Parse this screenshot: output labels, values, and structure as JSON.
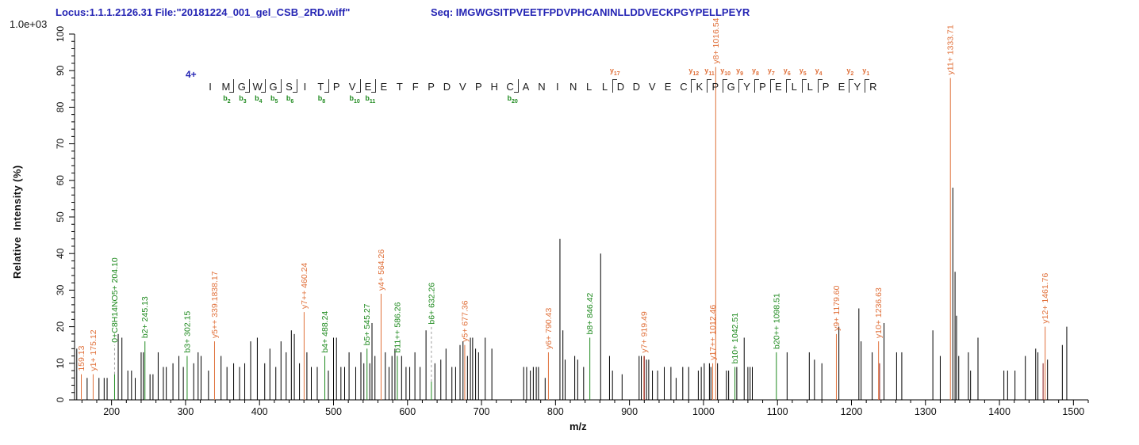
{
  "header": {
    "locus_file": "Locus:1.1.1.2126.31 File:\"20181224_001_gel_CSB_2RD.wiff\"",
    "seq_line": "Seq: IMGWGSITPVEETFPDVPHCANINLLDDVECKPGYPELLPEYR"
  },
  "peptide_annotation": {
    "charge_label": "4+",
    "residues": "IMGWGSITPVEETFPDVPHCANINLLDDVECKPGYPELLPEYR",
    "b_cuts": [
      2,
      3,
      4,
      5,
      6,
      8,
      10,
      11,
      20
    ],
    "y_cuts": [
      17,
      12,
      11,
      10,
      9,
      8,
      7,
      6,
      5,
      4,
      2,
      1
    ]
  },
  "colors": {
    "y_ion": "#e0703a",
    "b_ion": "#1f8a1f",
    "peak": "#000000",
    "dark_red": "#8b1a1a",
    "dash_line": "#9e9e9e",
    "header_blue": "#2525b4",
    "axis": "#000000"
  },
  "chart_data": {
    "type": "bar",
    "subtype": "ms2-fragmentation-spectrum",
    "title": "",
    "xlabel": "m/z",
    "ylabel": "Relative  Intensity (%)",
    "y_scale_label": "1.0e+03",
    "xlim": [
      150,
      1520
    ],
    "ylim": [
      0,
      100
    ],
    "x_ticks": [
      200,
      300,
      400,
      500,
      600,
      700,
      800,
      900,
      1000,
      1100,
      1200,
      1300,
      1400,
      1500
    ],
    "y_ticks": [
      0,
      10,
      20,
      30,
      40,
      50,
      60,
      70,
      80,
      90,
      100
    ],
    "x_minor_step": 20,
    "y_minor_step": 2,
    "grid": false,
    "legend": "none",
    "peaks_format": "[mz, rel_intensity_pct, type(k=black,y=y-ion,b=b-ion,r=dark-red), label, dash_to_pct]",
    "peaks": [
      [
        153,
        14,
        "k",
        "",
        0
      ],
      [
        159.13,
        7,
        "y",
        "159.13",
        0
      ],
      [
        167,
        6,
        "k",
        "",
        0
      ],
      [
        175.12,
        7,
        "y",
        "y1+ 175.12",
        0
      ],
      [
        183,
        6,
        "k",
        "",
        0
      ],
      [
        190,
        6,
        "k",
        "",
        0
      ],
      [
        194,
        6,
        "k",
        "",
        0
      ],
      [
        204.1,
        7,
        "b",
        "0+C8H14NO5+ 204.10",
        15
      ],
      [
        209,
        18,
        "k",
        "",
        0
      ],
      [
        214,
        17,
        "k",
        "",
        0
      ],
      [
        222,
        8,
        "k",
        "",
        0
      ],
      [
        227,
        8,
        "k",
        "",
        0
      ],
      [
        232,
        6,
        "k",
        "",
        0
      ],
      [
        240,
        13,
        "k",
        "",
        0
      ],
      [
        243,
        13,
        "k",
        "",
        0
      ],
      [
        245.13,
        16,
        "b",
        "b2+ 245.13",
        0
      ],
      [
        252,
        7,
        "k",
        "",
        0
      ],
      [
        256,
        7,
        "k",
        "",
        0
      ],
      [
        263,
        13,
        "k",
        "",
        0
      ],
      [
        270,
        9,
        "k",
        "",
        0
      ],
      [
        274,
        9,
        "k",
        "",
        0
      ],
      [
        283,
        10,
        "k",
        "",
        0
      ],
      [
        291,
        12,
        "k",
        "",
        0
      ],
      [
        297,
        9,
        "k",
        "",
        0
      ],
      [
        302.15,
        12,
        "b",
        "b3+ 302.15",
        0
      ],
      [
        311,
        10,
        "k",
        "",
        0
      ],
      [
        317,
        13,
        "k",
        "",
        0
      ],
      [
        321,
        12,
        "k",
        "",
        0
      ],
      [
        331,
        8,
        "k",
        "",
        0
      ],
      [
        339.18,
        16,
        "y",
        "y5++ 339.1838.17",
        0
      ],
      [
        348,
        12,
        "k",
        "",
        0
      ],
      [
        356,
        9,
        "k",
        "",
        0
      ],
      [
        365,
        10,
        "k",
        "",
        0
      ],
      [
        373,
        9,
        "k",
        "",
        0
      ],
      [
        380,
        10,
        "k",
        "",
        0
      ],
      [
        388,
        16,
        "k",
        "",
        0
      ],
      [
        397,
        17,
        "k",
        "",
        0
      ],
      [
        407,
        10,
        "k",
        "",
        0
      ],
      [
        414,
        14,
        "k",
        "",
        0
      ],
      [
        422,
        9,
        "k",
        "",
        0
      ],
      [
        429,
        16,
        "k",
        "",
        0
      ],
      [
        436,
        13,
        "k",
        "",
        0
      ],
      [
        443,
        19,
        "k",
        "",
        0
      ],
      [
        447,
        18,
        "k",
        "",
        0
      ],
      [
        454,
        10,
        "k",
        "",
        0
      ],
      [
        460.24,
        24,
        "y",
        "y7++ 460.24",
        0
      ],
      [
        464,
        13,
        "k",
        "",
        0
      ],
      [
        470,
        9,
        "k",
        "",
        0
      ],
      [
        478,
        9,
        "k",
        "",
        0
      ],
      [
        488.24,
        12,
        "b",
        "b4+ 488.24",
        0
      ],
      [
        493,
        8,
        "k",
        "",
        0
      ],
      [
        500,
        17,
        "k",
        "",
        0
      ],
      [
        504,
        17,
        "k",
        "",
        0
      ],
      [
        510,
        9,
        "k",
        "",
        0
      ],
      [
        515,
        9,
        "k",
        "",
        0
      ],
      [
        521,
        13,
        "k",
        "",
        0
      ],
      [
        530,
        9,
        "k",
        "",
        0
      ],
      [
        537,
        13,
        "k",
        "",
        0
      ],
      [
        541,
        10,
        "k",
        "",
        0
      ],
      [
        545.27,
        14,
        "b",
        "b5+ 545.27",
        0
      ],
      [
        549,
        10,
        "k",
        "",
        0
      ],
      [
        552,
        21,
        "k",
        "",
        0
      ],
      [
        556,
        12,
        "k",
        "",
        0
      ],
      [
        564.26,
        29,
        "y",
        "y4+ 564.26",
        0
      ],
      [
        570,
        13,
        "k",
        "",
        0
      ],
      [
        575,
        9,
        "k",
        "",
        0
      ],
      [
        579,
        12,
        "k",
        "",
        0
      ],
      [
        583,
        14,
        "k",
        "",
        0
      ],
      [
        586.26,
        12,
        "b",
        "b11++ 586.26",
        0
      ],
      [
        592,
        12,
        "k",
        "",
        0
      ],
      [
        598,
        9,
        "k",
        "",
        0
      ],
      [
        603,
        9,
        "k",
        "",
        0
      ],
      [
        610,
        13,
        "k",
        "",
        0
      ],
      [
        617,
        9,
        "k",
        "",
        0
      ],
      [
        625,
        19,
        "k",
        "",
        0
      ],
      [
        632.26,
        5,
        "b",
        "b6+ 632.26",
        20
      ],
      [
        637,
        10,
        "k",
        "",
        0
      ],
      [
        645,
        11,
        "k",
        "",
        0
      ],
      [
        652,
        14,
        "k",
        "",
        0
      ],
      [
        660,
        9,
        "k",
        "",
        0
      ],
      [
        665,
        9,
        "k",
        "",
        0
      ],
      [
        671,
        15,
        "k",
        "",
        0
      ],
      [
        675,
        16,
        "k",
        "",
        0
      ],
      [
        677.36,
        15,
        "y",
        "y5+ 677.36",
        0
      ],
      [
        681,
        12,
        "k",
        "",
        0
      ],
      [
        685,
        17,
        "k",
        "",
        0
      ],
      [
        688,
        17,
        "k",
        "",
        0
      ],
      [
        692,
        14,
        "k",
        "",
        0
      ],
      [
        696,
        13,
        "k",
        "",
        0
      ],
      [
        705,
        17,
        "k",
        "",
        0
      ],
      [
        714,
        14,
        "k",
        "",
        0
      ],
      [
        757,
        9,
        "k",
        "",
        0
      ],
      [
        761,
        9,
        "k",
        "",
        0
      ],
      [
        766,
        8,
        "k",
        "",
        0
      ],
      [
        770,
        9,
        "k",
        "",
        0
      ],
      [
        774,
        9,
        "k",
        "",
        0
      ],
      [
        777,
        9,
        "k",
        "",
        0
      ],
      [
        786,
        6,
        "k",
        "",
        0
      ],
      [
        790.43,
        13,
        "y",
        "y6+ 790.43",
        0
      ],
      [
        806,
        44,
        "k",
        "",
        0
      ],
      [
        810,
        19,
        "k",
        "",
        0
      ],
      [
        813,
        11,
        "k",
        "",
        0
      ],
      [
        826,
        12,
        "k",
        "",
        0
      ],
      [
        830,
        11,
        "k",
        "",
        0
      ],
      [
        838,
        9,
        "k",
        "",
        0
      ],
      [
        846.42,
        17,
        "b",
        "b8+ 846.42",
        0
      ],
      [
        861,
        40,
        "k",
        "",
        0
      ],
      [
        873,
        12,
        "k",
        "",
        0
      ],
      [
        877,
        8,
        "k",
        "",
        0
      ],
      [
        890,
        7,
        "k",
        "",
        0
      ],
      [
        913,
        12,
        "k",
        "",
        0
      ],
      [
        916,
        12,
        "k",
        "",
        0
      ],
      [
        919.49,
        12,
        "y",
        "y7+ 919.49",
        0
      ],
      [
        920,
        12,
        "r",
        "",
        0
      ],
      [
        923,
        11,
        "k",
        "",
        0
      ],
      [
        926,
        11,
        "k",
        "",
        0
      ],
      [
        931,
        8,
        "k",
        "",
        0
      ],
      [
        938,
        8,
        "k",
        "",
        0
      ],
      [
        947,
        9,
        "k",
        "",
        0
      ],
      [
        956,
        9,
        "k",
        "",
        0
      ],
      [
        963,
        6,
        "k",
        "",
        0
      ],
      [
        972,
        9,
        "k",
        "",
        0
      ],
      [
        980,
        9,
        "k",
        "",
        0
      ],
      [
        993,
        8,
        "k",
        "",
        0
      ],
      [
        997,
        9,
        "k",
        "",
        0
      ],
      [
        1001,
        10,
        "k",
        "",
        0
      ],
      [
        1008,
        10,
        "k",
        "",
        0
      ],
      [
        1010,
        9,
        "k",
        "",
        0
      ],
      [
        1012.46,
        10,
        "y",
        "y17++ 1012.46",
        0
      ],
      [
        1016.54,
        91,
        "y",
        "y8+ 1016.54",
        0
      ],
      [
        1019,
        10,
        "k",
        "",
        0
      ],
      [
        1031,
        8,
        "k",
        "",
        0
      ],
      [
        1034,
        8,
        "k",
        "",
        0
      ],
      [
        1042.51,
        9,
        "b",
        "b10+ 1042.51",
        0
      ],
      [
        1045,
        9,
        "k",
        "",
        0
      ],
      [
        1055,
        17,
        "k",
        "",
        0
      ],
      [
        1060,
        9,
        "k",
        "",
        0
      ],
      [
        1063,
        9,
        "k",
        "",
        0
      ],
      [
        1066,
        9,
        "k",
        "",
        0
      ],
      [
        1098.51,
        13,
        "b",
        "b20++ 1098.51",
        0
      ],
      [
        1113,
        13,
        "k",
        "",
        0
      ],
      [
        1143,
        13,
        "k",
        "",
        0
      ],
      [
        1150,
        11,
        "k",
        "",
        0
      ],
      [
        1160,
        10,
        "k",
        "",
        0
      ],
      [
        1179.6,
        18,
        "y",
        "y9+ 1179.60",
        0
      ],
      [
        1183,
        20,
        "k",
        "",
        0
      ],
      [
        1210,
        25,
        "k",
        "",
        0
      ],
      [
        1213,
        16,
        "k",
        "",
        0
      ],
      [
        1228,
        13,
        "k",
        "",
        0
      ],
      [
        1236.63,
        16,
        "y",
        "y10+ 1236.63",
        0
      ],
      [
        1238,
        10,
        "r",
        "",
        0
      ],
      [
        1244,
        21,
        "k",
        "",
        0
      ],
      [
        1261,
        13,
        "k",
        "",
        0
      ],
      [
        1268,
        13,
        "k",
        "",
        0
      ],
      [
        1310,
        19,
        "k",
        "",
        0
      ],
      [
        1320,
        12,
        "k",
        "",
        0
      ],
      [
        1333.71,
        88,
        "y",
        "y11+ 1333.71",
        0
      ],
      [
        1337,
        58,
        "k",
        "",
        0
      ],
      [
        1340,
        35,
        "k",
        "",
        0
      ],
      [
        1342,
        23,
        "k",
        "",
        0
      ],
      [
        1345,
        12,
        "k",
        "",
        0
      ],
      [
        1358,
        13,
        "k",
        "",
        0
      ],
      [
        1361,
        8,
        "k",
        "",
        0
      ],
      [
        1371,
        17,
        "k",
        "",
        0
      ],
      [
        1406,
        8,
        "k",
        "",
        0
      ],
      [
        1411,
        8,
        "k",
        "",
        0
      ],
      [
        1421,
        8,
        "k",
        "",
        0
      ],
      [
        1435,
        12,
        "k",
        "",
        0
      ],
      [
        1449,
        14,
        "k",
        "",
        0
      ],
      [
        1452,
        13,
        "k",
        "",
        0
      ],
      [
        1459,
        10,
        "r",
        "",
        0
      ],
      [
        1461.76,
        20,
        "y",
        "y12+ 1461.76",
        0
      ],
      [
        1465,
        11,
        "k",
        "",
        0
      ],
      [
        1485,
        15,
        "k",
        "",
        0
      ],
      [
        1491,
        20,
        "k",
        "",
        0
      ]
    ]
  }
}
